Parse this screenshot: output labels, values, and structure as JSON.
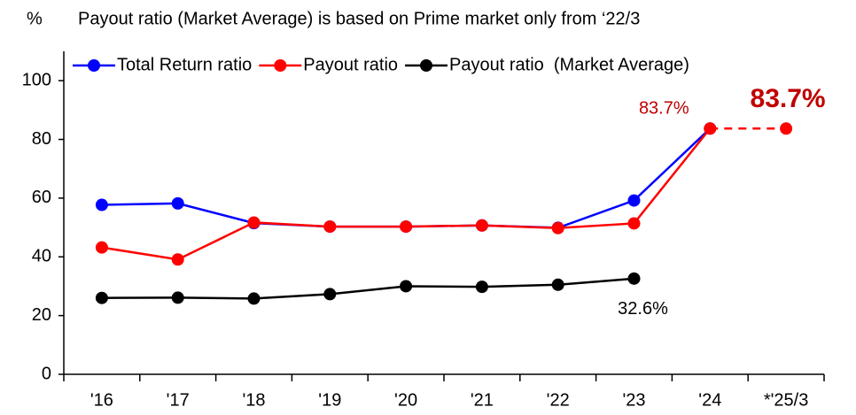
{
  "chart_data": {
    "type": "line",
    "y_label": "%",
    "note": "Payout ratio (Market Average) is based on Prime market only from ‘22/3",
    "categories": [
      "'16",
      "'17",
      "'18",
      "'19",
      "'20",
      "'21",
      "'22",
      "'23",
      "'24",
      "*'25/3"
    ],
    "series": [
      {
        "name": "Total Return ratio",
        "color": "#0000ff",
        "values": [
          57.7,
          58.2,
          51.5,
          50.3,
          50.3,
          50.7,
          49.9,
          59.2,
          83.7,
          null
        ]
      },
      {
        "name": "Payout ratio",
        "color": "#ff0000",
        "dash_from": 8,
        "values": [
          43.2,
          39.1,
          51.7,
          50.3,
          50.3,
          50.7,
          49.8,
          51.4,
          83.7,
          83.7
        ],
        "value_labels": [
          null,
          null,
          null,
          null,
          null,
          null,
          null,
          null,
          "83.7%",
          "83.7%"
        ]
      },
      {
        "name": "Payout ratio  (Market Average)",
        "color": "#000000",
        "values": [
          26.0,
          26.1,
          25.8,
          27.3,
          30.0,
          29.8,
          30.5,
          32.6,
          null,
          null
        ],
        "value_labels": [
          null,
          null,
          null,
          null,
          null,
          null,
          null,
          "32.6%",
          null,
          null
        ]
      }
    ],
    "ylim": [
      0,
      110
    ],
    "yticks": [
      0,
      20,
      40,
      60,
      80,
      100
    ],
    "grid": false,
    "legend": "top"
  }
}
